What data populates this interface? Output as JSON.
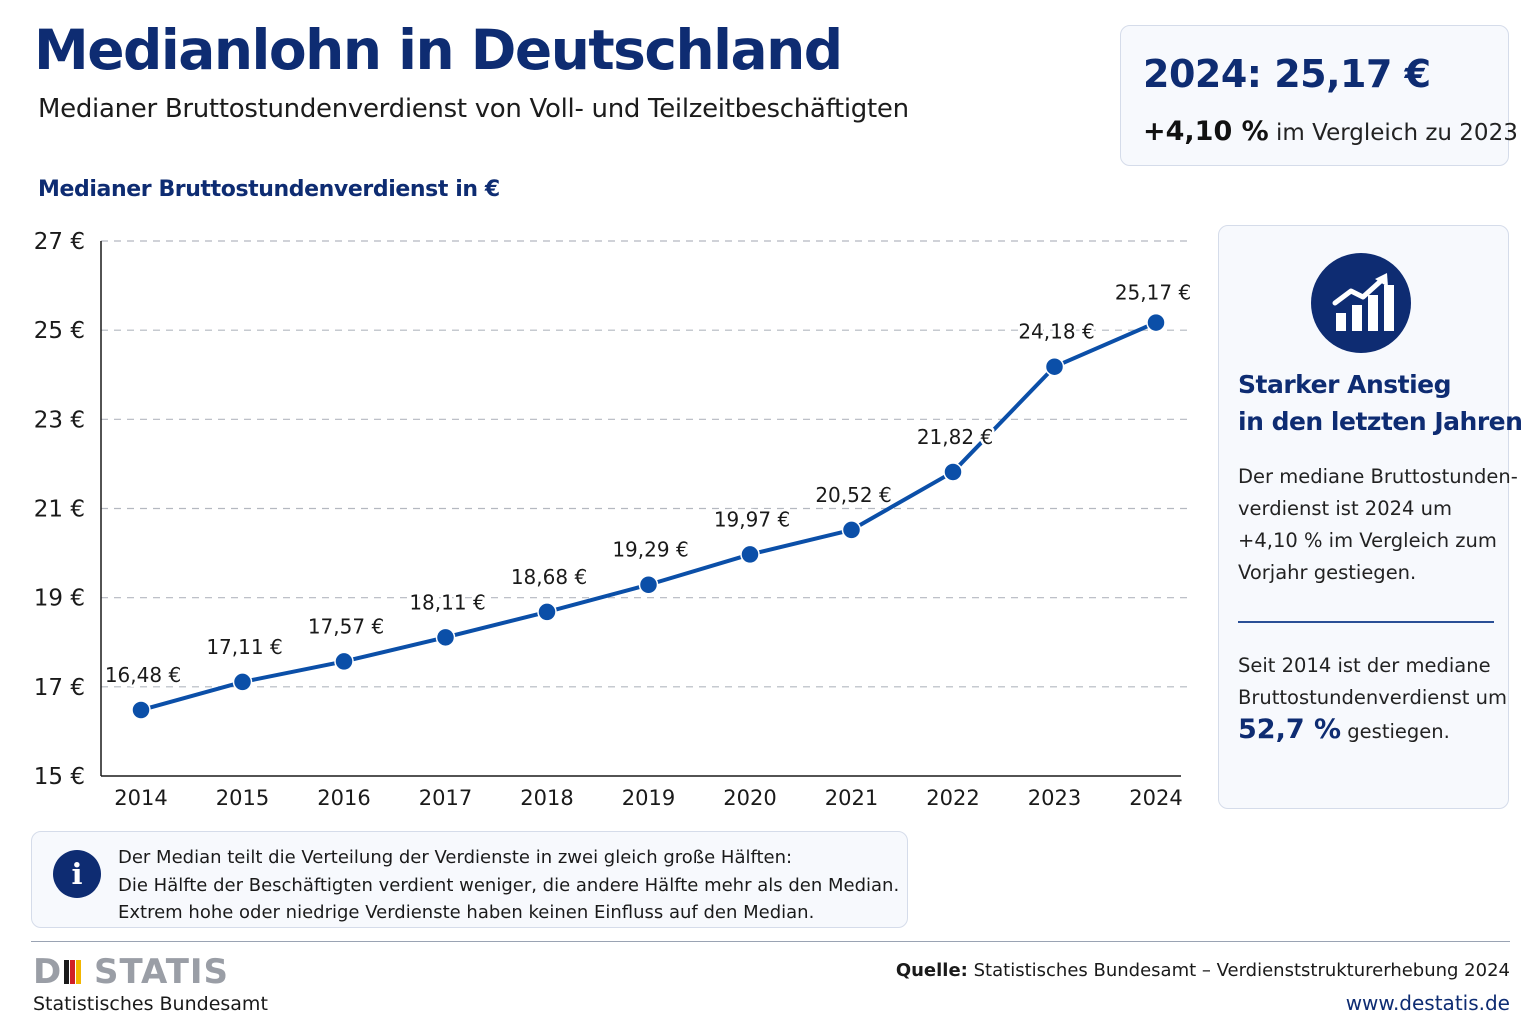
{
  "title": "Medianlohn in Deutschland",
  "subtitle": "Medianer Bruttostundenverdienst von Voll- und Teilzeitbeschäftigten",
  "kpi": {
    "value": "2024: 25,17 €",
    "change_value": "+4,10 %",
    "change_text": "im Vergleich zu 2023"
  },
  "chart_data": {
    "type": "line",
    "title": "Medianer Bruttostundenverdienst in €",
    "xlabel": "",
    "ylabel": "",
    "x": [
      "2014",
      "2015",
      "2016",
      "2017",
      "2018",
      "2019",
      "2020",
      "2021",
      "2022",
      "2023",
      "2024"
    ],
    "series": [
      {
        "values": [
          16.48,
          17.11,
          17.57,
          18.11,
          18.68,
          19.29,
          19.97,
          20.52,
          21.82,
          24.18,
          25.17
        ],
        "labels": [
          "16,48 €",
          "17,11 €",
          "17,57 €",
          "18,11 €",
          "18,68 €",
          "19,29 €",
          "19,97 €",
          "20,52 €",
          "21,82 €",
          "24,18 €",
          "25,17 €"
        ]
      }
    ],
    "ylim": [
      15,
      27
    ],
    "yticks": [
      15,
      17,
      19,
      21,
      23,
      25,
      27
    ],
    "ytick_labels": [
      "15 €",
      "17 €",
      "19 €",
      "21 €",
      "23 €",
      "25 €",
      "27 €"
    ],
    "grid": true,
    "grid_style": "dashed",
    "line_color": "#0b4fa8"
  },
  "side_panel": {
    "icon": "trend-up-icon",
    "heading_line1": "Starker Anstieg",
    "heading_line2": "in den letzten Jahren",
    "text1_lines": [
      "Der mediane Bruttostunden-",
      "verdienst ist 2024 um",
      "+4,10 % im Vergleich zum",
      "Vorjahr gestiegen."
    ],
    "text2_line1": "Seit 2014 ist der mediane",
    "text2_line2": "Bruttostundenverdienst um",
    "text2_pct": "52,7 %",
    "text2_end": "gestiegen."
  },
  "info": {
    "icon": "info-icon",
    "icon_glyph": "i",
    "lines": [
      "Der Median teilt die Verteilung der Verdienste in zwei gleich große Hälften:",
      "Die Hälfte der Beschäftigten verdient weniger, die andere Hälfte mehr als den Median.",
      "Extrem hohe oder niedrige Verdienste haben keinen Einfluss auf den Median."
    ]
  },
  "footer": {
    "logo_d": "D",
    "logo_statis": "STATIS",
    "org_name": "Statistisches Bundesamt",
    "source_label": "Quelle:",
    "source_text": "Statistisches Bundesamt – Verdienststrukturerhebung 2024",
    "website": "www.destatis.de"
  },
  "colors": {
    "navy": "#0e2c72",
    "line": "#0b4fa8",
    "flag_black": "#1a1a1a",
    "flag_red": "#d11f26",
    "flag_gold": "#f2b600"
  }
}
